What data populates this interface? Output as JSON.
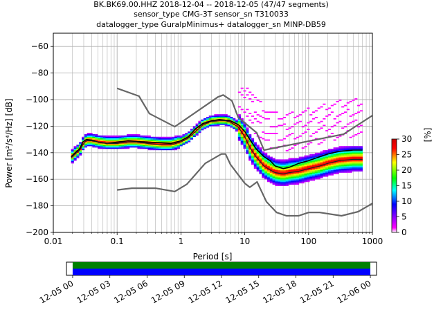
{
  "header": {
    "line1": "BK.BK69.00.HHZ   2018-12-04 -- 2018-12-05  (47/47 segments)",
    "line2": "sensor_type CMG-3T sensor_sn T310033",
    "line3": "datalogger_type GuralpMinimus+ datalogger_sn MINP-DB59"
  },
  "chart_data": [
    {
      "type": "heatmap",
      "xlabel": "Period [s]",
      "ylabel": "Power [m²/s⁴/Hz] [dB]",
      "x_scale": "log",
      "xlim": [
        0.01,
        1000
      ],
      "ylim": [
        -200,
        -50
      ],
      "x_ticks": [
        0.01,
        0.1,
        1,
        10,
        100,
        1000
      ],
      "x_tick_labels": [
        "0.01",
        "0.1",
        "1",
        "10",
        "100",
        "1000"
      ],
      "y_ticks": [
        -200,
        -180,
        -160,
        -140,
        -120,
        -100,
        -80,
        -60
      ],
      "grid": true,
      "colorbar": {
        "label": "[%]",
        "range": [
          0,
          30
        ],
        "ticks": [
          0,
          5,
          10,
          15,
          20,
          25,
          30
        ],
        "colors": [
          "#ffffff",
          "#ff00ff",
          "#0000ff",
          "#00ffff",
          "#00ff00",
          "#ffff00",
          "#ff0000",
          "#cc0000"
        ]
      },
      "series": [
        {
          "role": "mean",
          "color": "#000000",
          "points": [
            [
              0.019,
              -143
            ],
            [
              0.022,
              -140
            ],
            [
              0.026,
              -137
            ],
            [
              0.029,
              -132
            ],
            [
              0.033,
              -130
            ],
            [
              0.04,
              -130.5
            ],
            [
              0.05,
              -132
            ],
            [
              0.07,
              -133
            ],
            [
              0.1,
              -132
            ],
            [
              0.15,
              -131
            ],
            [
              0.2,
              -131.5
            ],
            [
              0.3,
              -132
            ],
            [
              0.5,
              -132.5
            ],
            [
              0.7,
              -133
            ],
            [
              1,
              -131
            ],
            [
              1.3,
              -128
            ],
            [
              1.7,
              -122
            ],
            [
              2.2,
              -118
            ],
            [
              3,
              -116
            ],
            [
              4,
              -115
            ],
            [
              5,
              -115.5
            ],
            [
              6,
              -116
            ],
            [
              8,
              -119
            ],
            [
              10,
              -124
            ],
            [
              12,
              -130
            ],
            [
              15,
              -137
            ],
            [
              20,
              -143
            ],
            [
              25,
              -146
            ],
            [
              30,
              -150
            ],
            [
              40,
              -152
            ],
            [
              50,
              -151
            ],
            [
              70,
              -148
            ],
            [
              100,
              -146
            ],
            [
              150,
              -143
            ],
            [
              200,
              -141
            ],
            [
              300,
              -139
            ],
            [
              500,
              -138
            ],
            [
              700,
              -138
            ]
          ]
        },
        {
          "role": "median",
          "color": "#222222",
          "points": [
            [
              0.019,
              -144
            ],
            [
              0.022,
              -141
            ],
            [
              0.026,
              -138
            ],
            [
              0.029,
              -134
            ],
            [
              0.033,
              -131
            ],
            [
              0.04,
              -131
            ],
            [
              0.05,
              -132
            ],
            [
              0.07,
              -133
            ],
            [
              0.1,
              -133
            ],
            [
              0.15,
              -132
            ],
            [
              0.2,
              -132
            ],
            [
              0.3,
              -133
            ],
            [
              0.5,
              -134
            ],
            [
              0.7,
              -134
            ],
            [
              1,
              -132
            ],
            [
              1.3,
              -129
            ],
            [
              1.7,
              -124
            ],
            [
              2.2,
              -119
            ],
            [
              3,
              -116.5
            ],
            [
              4,
              -116
            ],
            [
              5,
              -116
            ],
            [
              6,
              -117
            ],
            [
              8,
              -121
            ],
            [
              10,
              -128
            ],
            [
              12,
              -136
            ],
            [
              15,
              -143
            ],
            [
              20,
              -150
            ],
            [
              25,
              -153
            ],
            [
              30,
              -155
            ],
            [
              40,
              -156
            ],
            [
              50,
              -155
            ],
            [
              70,
              -154
            ],
            [
              100,
              -152
            ],
            [
              150,
              -150
            ],
            [
              200,
              -148
            ],
            [
              300,
              -146
            ],
            [
              500,
              -145
            ],
            [
              700,
              -145
            ]
          ]
        },
        {
          "role": "model-high",
          "color": "#666666",
          "points": [
            [
              0.1,
              -91.5
            ],
            [
              0.22,
              -97.4
            ],
            [
              0.32,
              -110.5
            ],
            [
              0.8,
              -120.4
            ],
            [
              3.8,
              -98
            ],
            [
              4.6,
              -96.5
            ],
            [
              6.3,
              -101
            ],
            [
              7.9,
              -113.5
            ],
            [
              15.4,
              -125
            ],
            [
              20,
              -138
            ],
            [
              354.8,
              -126
            ],
            [
              1000,
              -112
            ]
          ]
        },
        {
          "role": "model-low",
          "color": "#666666",
          "points": [
            [
              0.1,
              -168
            ],
            [
              0.17,
              -166.7
            ],
            [
              0.4,
              -166.7
            ],
            [
              0.8,
              -169.2
            ],
            [
              1.24,
              -163.7
            ],
            [
              2.4,
              -148
            ],
            [
              4.3,
              -141
            ],
            [
              5,
              -141
            ],
            [
              6,
              -149
            ],
            [
              10,
              -163
            ],
            [
              12,
              -166
            ],
            [
              15.6,
              -162
            ],
            [
              21.9,
              -177
            ],
            [
              31.6,
              -185
            ],
            [
              45,
              -187.5
            ],
            [
              70,
              -187.5
            ],
            [
              100,
              -185
            ],
            [
              150,
              -185
            ],
            [
              328.6,
              -187.5
            ],
            [
              600,
              -184.4
            ],
            [
              1000,
              -178.2
            ]
          ]
        }
      ]
    },
    {
      "type": "timeline",
      "description_of_axis": "data availability",
      "tick_labels": [
        "12-05 00",
        "12-05 03",
        "12-05 06",
        "12-05 09",
        "12-05 12",
        "12-05 15",
        "12-05 18",
        "12-05 21",
        "12-06 00"
      ],
      "range_hours": [
        -0.5,
        24.5
      ],
      "coverage_hours": [
        0,
        24
      ],
      "bands": [
        {
          "name": "top",
          "color": "#008000"
        },
        {
          "name": "bottom",
          "color": "#0000ff"
        }
      ]
    }
  ]
}
